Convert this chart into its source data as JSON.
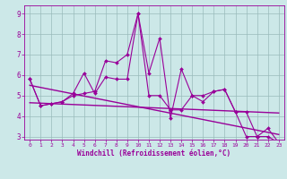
{
  "xlabel": "Windchill (Refroidissement éolien,°C)",
  "x": [
    0,
    1,
    2,
    3,
    4,
    5,
    6,
    7,
    8,
    9,
    10,
    11,
    12,
    13,
    14,
    15,
    16,
    17,
    18,
    19,
    20,
    21,
    22,
    23
  ],
  "line1": [
    5.8,
    4.5,
    4.6,
    4.7,
    5.1,
    6.1,
    5.1,
    5.9,
    5.8,
    5.8,
    9.0,
    6.1,
    7.8,
    3.9,
    6.3,
    5.0,
    4.7,
    5.2,
    5.3,
    4.2,
    3.0,
    3.0,
    3.4,
    2.7
  ],
  "line2": [
    5.8,
    4.5,
    4.6,
    4.7,
    5.0,
    5.1,
    5.2,
    6.7,
    6.6,
    7.0,
    9.0,
    5.0,
    5.0,
    4.3,
    4.3,
    5.0,
    5.0,
    5.2,
    5.3,
    4.2,
    4.2,
    3.0,
    3.0,
    2.7
  ],
  "line3_x": [
    0,
    23
  ],
  "line3_y": [
    5.5,
    3.1
  ],
  "line4_x": [
    0,
    23
  ],
  "line4_y": [
    4.65,
    4.15
  ],
  "bg_color": "#cce8e8",
  "line_color": "#990099",
  "grid_color": "#99bbbb",
  "ylim": [
    2.85,
    9.4
  ],
  "xlim": [
    -0.5,
    23.5
  ],
  "yticks": [
    3,
    4,
    5,
    6,
    7,
    8,
    9
  ],
  "xticks": [
    0,
    1,
    2,
    3,
    4,
    5,
    6,
    7,
    8,
    9,
    10,
    11,
    12,
    13,
    14,
    15,
    16,
    17,
    18,
    19,
    20,
    21,
    22,
    23
  ]
}
